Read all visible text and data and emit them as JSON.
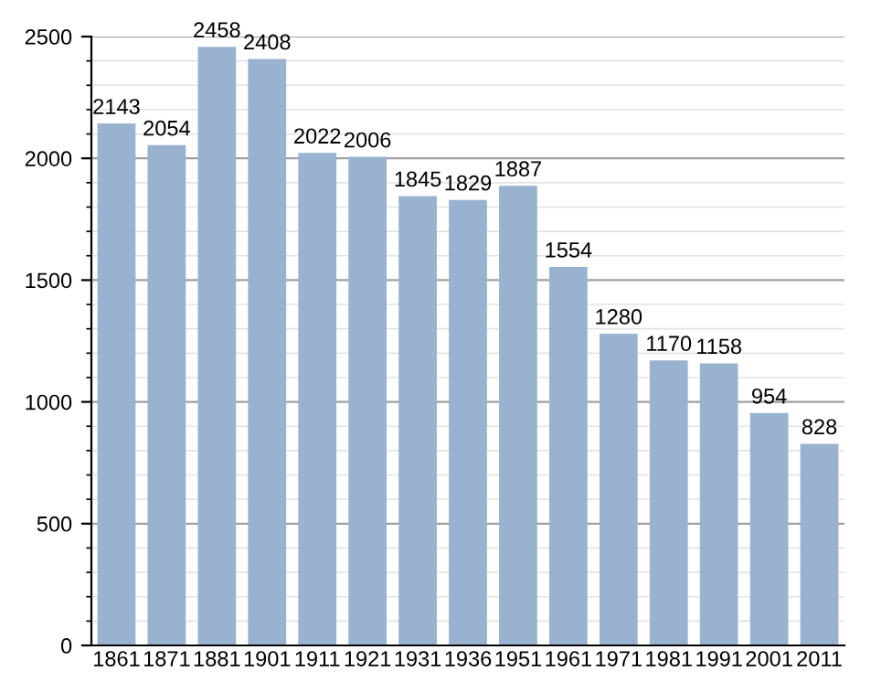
{
  "chart_data": {
    "type": "bar",
    "categories": [
      "1861",
      "1871",
      "1881",
      "1901",
      "1911",
      "1921",
      "1931",
      "1936",
      "1951",
      "1961",
      "1971",
      "1981",
      "1991",
      "2001",
      "2011"
    ],
    "values": [
      2143,
      2054,
      2458,
      2408,
      2022,
      2006,
      1845,
      1829,
      1887,
      1554,
      1280,
      1170,
      1158,
      954,
      828
    ],
    "color": "#98b2cf",
    "ylim": [
      0,
      2500
    ],
    "yticks": [
      0,
      500,
      1000,
      1500,
      2000,
      2500
    ],
    "grid": "y",
    "data_labels": true
  }
}
